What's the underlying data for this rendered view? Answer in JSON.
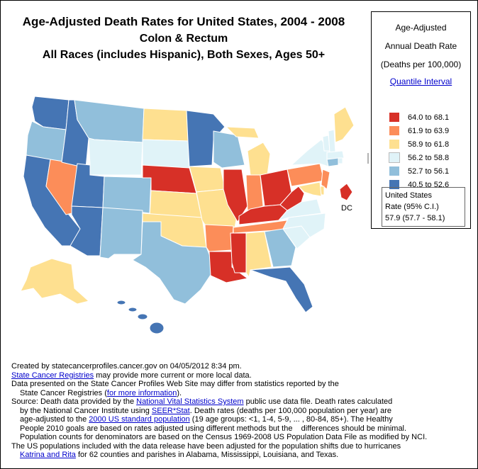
{
  "title": {
    "line1": "Age-Adjusted Death Rates for United States, 2004 - 2008",
    "line2": "Colon & Rectum",
    "line3": "All Races (includes Hispanic), Both Sexes, Ages 50+"
  },
  "legend": {
    "heading1": "Age-Adjusted",
    "heading2": "Annual Death Rate",
    "heading3": "(Deaths per 100,000)",
    "link": "Quantile Interval",
    "items": [
      {
        "color": "#d73027",
        "label": "64.0  to  68.1"
      },
      {
        "color": "#fc8d59",
        "label": "61.9  to  63.9"
      },
      {
        "color": "#fee090",
        "label": "58.9  to  61.8"
      },
      {
        "color": "#e0f3f8",
        "label": "56.2  to  58.8"
      },
      {
        "color": "#91bfdb",
        "label": "52.7  to  56.1"
      },
      {
        "color": "#4575b4",
        "label": "40.5  to  52.6"
      }
    ],
    "us_rate_line1": "United States",
    "us_rate_line2": "Rate (95% C.I.)",
    "us_rate_line3": "57.9   (57.7 - 58.1)"
  },
  "map": {
    "dc_label": "DC"
  },
  "notes": {
    "created": "Created by statecancerprofiles.cancer.gov on 04/05/2012 8:34 pm.",
    "registries_link": "State Cancer Registries",
    "registries_text": "  may provide more current or more local data.",
    "differ": "Data presented on the State Cancer Profiles Web Site may differ from statistics reported by the",
    "differ2_pre": "State Cancer Registries (",
    "differ2_link": "for more information",
    "differ2_post": ").",
    "source_pre": "Source: Death data provided by the ",
    "source_link": "National Vital Statistics System",
    "source_post": " public use data file. Death rates calculated",
    "nci_pre": "by the National Cancer Institute using ",
    "nci_link": "SEER*Stat",
    "nci_post": ". Death rates (deaths per 100,000 population per year) are",
    "age_pre": "age-adjusted to the ",
    "age_link": "2000 US standard population",
    "age_post": " (19 age groups: <1, 1-4, 5-9, ... , 80-84, 85+). The Healthy",
    "people": "People 2010 goals are based on rates adjusted using different methods but the    differences should be minimal.",
    "pop": "Population counts for denominators are based on the Census 1969-2008 US Population Data File as modified by NCI.",
    "hurr": "The US populations included with the data release have been adjusted for the population shifts due to hurricanes",
    "kat_link": "Katrina and Rita",
    "kat_post": " for 62 counties and parishes in Alabama, Mississippi, Louisiana, and Texas."
  }
}
